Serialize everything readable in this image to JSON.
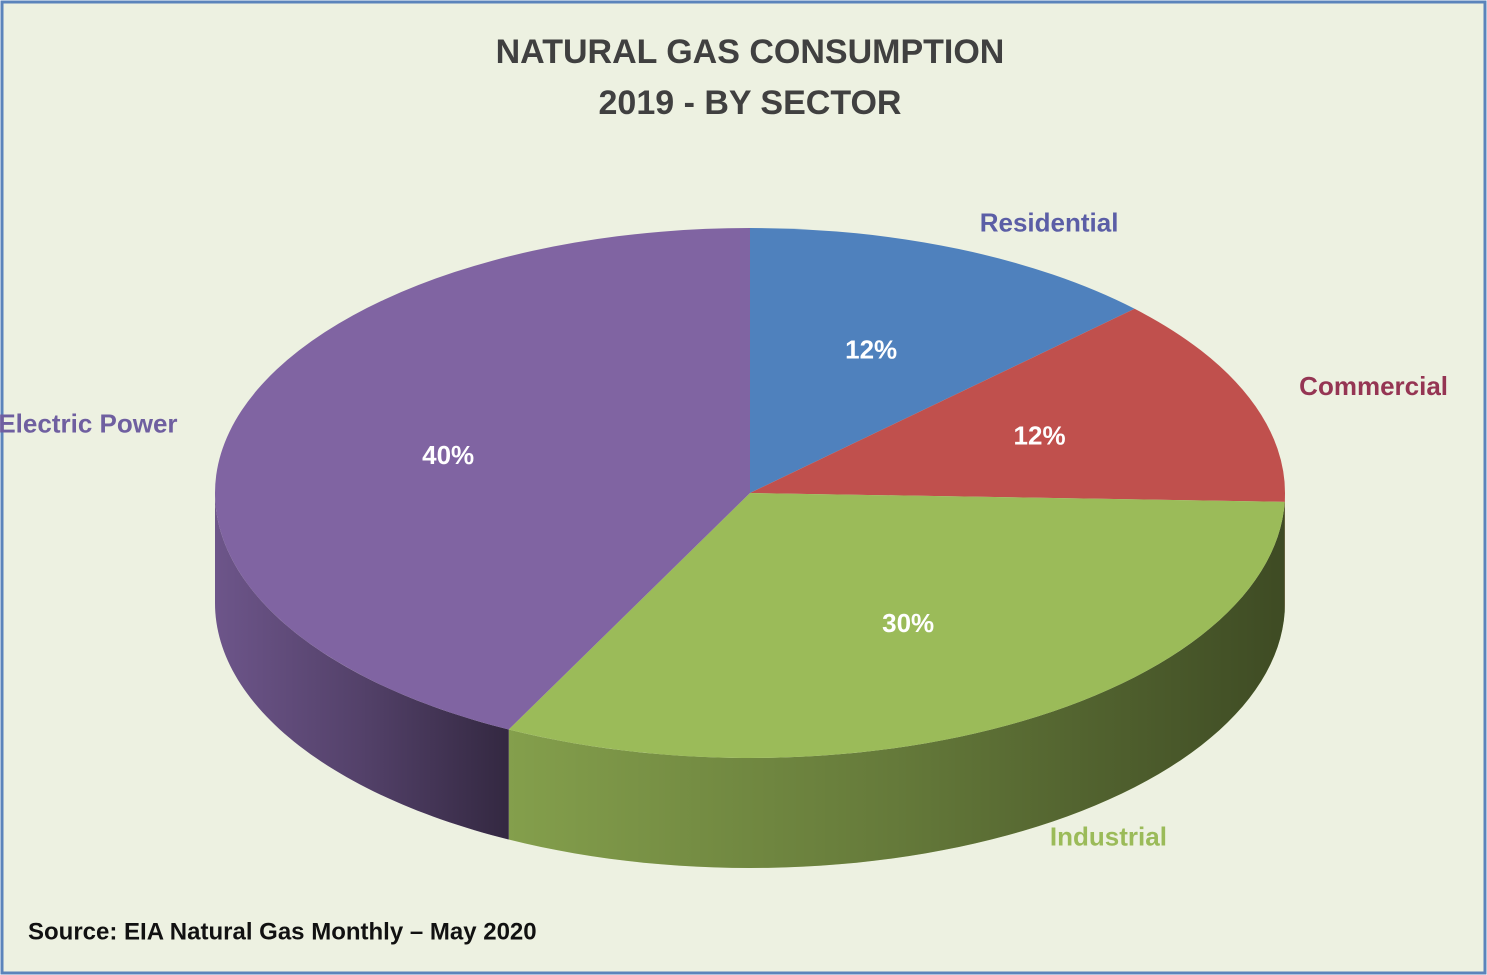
{
  "chart_data": {
    "type": "pie3d",
    "title": "NATURAL GAS CONSUMPTION",
    "subtitle": "2019 - BY SECTOR",
    "source": "Source: EIA Natural Gas Monthly – May 2020",
    "categories": [
      "Residential",
      "Commercial",
      "Industrial",
      "Electric Power"
    ],
    "values": [
      12,
      12,
      30,
      40
    ],
    "value_labels": [
      "12%",
      "12%",
      "30%",
      "40%"
    ],
    "colors": [
      "#4f81bd",
      "#c0504d",
      "#9bbb59",
      "#8064a2"
    ],
    "label_colors": [
      "#5b5ea6",
      "#953553",
      "#9bbb59",
      "#6f5fa0"
    ]
  }
}
